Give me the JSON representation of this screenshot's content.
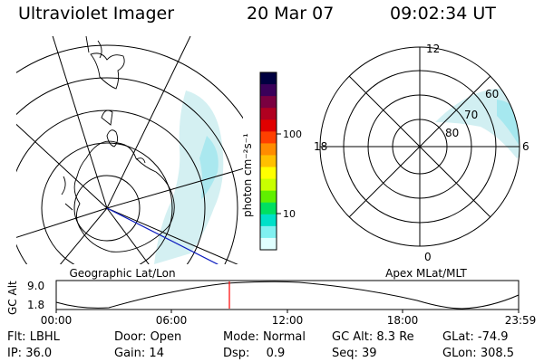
{
  "header": {
    "title": "Ultraviolet Imager",
    "date": "20 Mar 07",
    "time": "09:02:34 UT"
  },
  "left_panel": {
    "label": "Geographic Lat/Lon"
  },
  "right_panel": {
    "label": "Apex MLat/MLT",
    "mlt_labels": {
      "top": "12",
      "bottom": "0",
      "left": "18",
      "right": "6"
    },
    "lat_labels": [
      "60",
      "70",
      "80"
    ]
  },
  "colorbar": {
    "unit_label": "photon cm⁻²s⁻¹",
    "ticks": [
      "100",
      "10"
    ],
    "colors": [
      "#000040",
      "#3a005a",
      "#7a0040",
      "#b00020",
      "#e00000",
      "#ff4000",
      "#ff8c00",
      "#ffc000",
      "#ffff00",
      "#c8ff00",
      "#60f000",
      "#00e060",
      "#00e0c8",
      "#80f0f0",
      "#e0ffff"
    ]
  },
  "altitude_plot": {
    "axis_label": "GC Alt",
    "y_ticks": [
      "9.0",
      "1.8"
    ],
    "x_ticks": [
      "00:00",
      "06:00",
      "12:00",
      "18:00",
      "23:59"
    ],
    "marker_color": "#ff0000"
  },
  "info": {
    "row1": [
      {
        "label": "Flt:",
        "value": "LBHL"
      },
      {
        "label": "Door:",
        "value": "Open"
      },
      {
        "label": "Mode:",
        "value": "Normal"
      },
      {
        "label": "GC Alt:",
        "value": "8.3 Re"
      },
      {
        "label": "GLat:",
        "value": "-74.9"
      }
    ],
    "row2": [
      {
        "label": "IP:",
        "value": "36.0"
      },
      {
        "label": "Gain:",
        "value": "14"
      },
      {
        "label": "Dsp:",
        "value": "0.9"
      },
      {
        "label": "Seq:",
        "value": "39"
      },
      {
        "label": "GLon:",
        "value": "308.5"
      }
    ]
  }
}
